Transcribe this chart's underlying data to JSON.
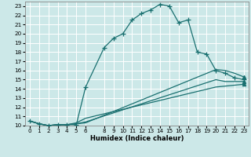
{
  "xlabel": "Humidex (Indice chaleur)",
  "bg_color": "#cce8e8",
  "grid_color": "#ffffff",
  "line_color": "#1a7070",
  "xlim": [
    -0.5,
    23.5
  ],
  "ylim": [
    10,
    23.5
  ],
  "xticks": [
    0,
    1,
    2,
    3,
    4,
    5,
    6,
    8,
    9,
    10,
    11,
    12,
    13,
    14,
    15,
    16,
    17,
    18,
    19,
    20,
    21,
    22,
    23
  ],
  "yticks": [
    10,
    11,
    12,
    13,
    14,
    15,
    16,
    17,
    18,
    19,
    20,
    21,
    22,
    23
  ],
  "line1_x": [
    0,
    1,
    2,
    3,
    4,
    5,
    6,
    8,
    9,
    10,
    11,
    12,
    13,
    14,
    15,
    16,
    17,
    18,
    19,
    20,
    21,
    22,
    23
  ],
  "line1_y": [
    10.5,
    10.2,
    10.0,
    10.1,
    10.1,
    10.1,
    14.2,
    18.5,
    19.5,
    20.0,
    21.5,
    22.2,
    22.6,
    23.2,
    23.0,
    21.2,
    21.5,
    18.0,
    17.8,
    16.0,
    15.7,
    15.2,
    15.0
  ],
  "line2_x": [
    0,
    1,
    2,
    3,
    4,
    5,
    6,
    20,
    21,
    22,
    23
  ],
  "line2_y": [
    10.5,
    10.2,
    10.0,
    10.1,
    10.1,
    10.2,
    10.3,
    16.1,
    16.0,
    15.7,
    15.3
  ],
  "line3_x": [
    0,
    1,
    2,
    3,
    4,
    5,
    6,
    20,
    21,
    22,
    23
  ],
  "line3_y": [
    10.5,
    10.2,
    10.0,
    10.1,
    10.1,
    10.2,
    10.4,
    15.0,
    14.8,
    14.8,
    14.8
  ],
  "line4_x": [
    0,
    1,
    2,
    3,
    4,
    5,
    6,
    20,
    21,
    22,
    23
  ],
  "line4_y": [
    10.5,
    10.2,
    10.0,
    10.1,
    10.1,
    10.3,
    10.8,
    14.2,
    14.3,
    14.4,
    14.5
  ]
}
